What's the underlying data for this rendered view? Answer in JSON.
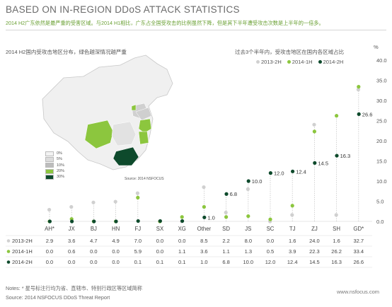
{
  "header": {
    "title": "BASED ON IN-REGION DDoS ATTACK STATISTICS",
    "subtitle": "2014 H2广东依然是最严重的受害区域。与2014 H1相比，广东占全国受攻击的比例虽然下降，但是其下半年遭受攻击次数是上半年的一倍多。"
  },
  "map": {
    "title": "2014 H2国内受攻击地区分布，绿色越深情况越严重",
    "legend": [
      {
        "label": "0%",
        "color": "#f2f2f2"
      },
      {
        "label": "5%",
        "color": "#dcdcdc"
      },
      {
        "label": "10%",
        "color": "#bdbdbd"
      },
      {
        "label": "20%",
        "color": "#8cc63e"
      },
      {
        "label": "30%",
        "color": "#0e4a2c"
      }
    ],
    "source": "Source: 2014 NSFOCUS"
  },
  "chart_data": {
    "type": "scatter",
    "title": "过去3个半年内，受攻击地区在国内各区域占比",
    "ylabel": "%",
    "ylim": [
      0,
      40
    ],
    "yticks": [
      "0.0",
      "5.0",
      "10.0",
      "15.0",
      "20.0",
      "25.0",
      "30.0",
      "35.0",
      "40.0"
    ],
    "categories": [
      "AH*",
      "JX",
      "BJ",
      "HN",
      "FJ",
      "SX",
      "XG",
      "Other",
      "SD",
      "JS",
      "SC",
      "TJ",
      "ZJ",
      "SH",
      "GD*"
    ],
    "series": [
      {
        "name": "2013-2H",
        "color": "#d0d0d0",
        "values": [
          2.9,
          3.6,
          4.7,
          4.9,
          7.0,
          0.0,
          0.0,
          8.5,
          2.2,
          8.0,
          0.0,
          1.6,
          24.0,
          1.6,
          32.7
        ]
      },
      {
        "name": "2014-1H",
        "color": "#8cc63e",
        "values": [
          0.0,
          0.6,
          0.0,
          0.0,
          5.9,
          0.0,
          1.1,
          3.6,
          1.1,
          1.3,
          0.5,
          3.9,
          22.3,
          26.2,
          33.4
        ]
      },
      {
        "name": "2014-2H",
        "color": "#0e4a2c",
        "values": [
          0.0,
          0.0,
          0.0,
          0.0,
          0.1,
          0.1,
          0.1,
          1.0,
          6.8,
          10.0,
          12.0,
          12.4,
          14.5,
          16.3,
          26.6
        ]
      }
    ],
    "data_labels_2014_2H": [
      "1.0",
      "6.8",
      "10.0",
      "12.0",
      "12.4",
      "14.5",
      "16.3",
      "26.6"
    ],
    "table": [
      {
        "label": "2013-2H",
        "color": "#d0d0d0",
        "values": [
          "2.9",
          "3.6",
          "4.7",
          "4.9",
          "7.0",
          "0.0",
          "0.0",
          "8.5",
          "2.2",
          "8.0",
          "0.0",
          "1.6",
          "24.0",
          "1.6",
          "32.7"
        ]
      },
      {
        "label": "2014-1H",
        "color": "#8cc63e",
        "values": [
          "0.0",
          "0.6",
          "0.0",
          "0.0",
          "5.9",
          "0.0",
          "1.1",
          "3.6",
          "1.1",
          "1.3",
          "0.5",
          "3.9",
          "22.3",
          "26.2",
          "33.4"
        ]
      },
      {
        "label": "2014-2H",
        "color": "#0e4a2c",
        "values": [
          "0.0",
          "0.0",
          "0.0",
          "0.0",
          "0.1",
          "0.1",
          "0.1",
          "1.0",
          "6.8",
          "10.0",
          "12.0",
          "12.4",
          "14.5",
          "16.3",
          "26.6"
        ]
      }
    ]
  },
  "footer": {
    "notes": "Notes: * 星号标注行均为省、直辖市、特别行政区等区域简称",
    "source": "Source: 2014 NSFOCUS DDoS Threat Report",
    "brand": "www.nsfocus.com"
  }
}
